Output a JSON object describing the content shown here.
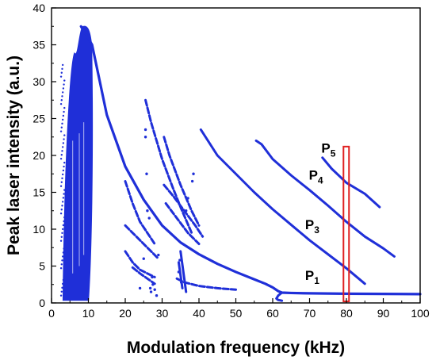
{
  "chart_data": {
    "type": "scatter",
    "xlabel": "Modulation frequency (kHz)",
    "ylabel": "Peak laser intensity (a.u.)",
    "xlim": [
      0,
      100
    ],
    "ylim": [
      0,
      40
    ],
    "xticks": [
      "0",
      "10",
      "20",
      "30",
      "40",
      "50",
      "60",
      "70",
      "80",
      "90",
      "100"
    ],
    "yticks": [
      "0",
      "5",
      "10",
      "15",
      "20",
      "25",
      "30",
      "35",
      "40"
    ],
    "grid": false,
    "marker_color": "#1f2fd8",
    "highlight_color": "#e02020",
    "chaotic_band": {
      "x_range": [
        3,
        11
      ],
      "y_range": [
        0.3,
        37.5
      ]
    },
    "series": [
      {
        "label": "P",
        "subscript": "1",
        "x": [
          8,
          11,
          15,
          20,
          25,
          30,
          35,
          40,
          45,
          50,
          55,
          58,
          60,
          61.5,
          62.5,
          65,
          70,
          80,
          90,
          100
        ],
        "y": [
          37.5,
          35,
          25.5,
          18.5,
          14,
          10.5,
          8.2,
          6.6,
          5.3,
          4.2,
          3.2,
          2.6,
          2.1,
          1.6,
          1.4,
          1.35,
          1.3,
          1.25,
          1.22,
          1.2
        ]
      },
      {
        "label": "",
        "x": [
          62.5,
          61.5,
          61,
          61.5,
          62.5
        ],
        "y": [
          1.4,
          1.0,
          0.6,
          0.4,
          0.3
        ]
      },
      {
        "label": "P",
        "subscript": "3",
        "x": [
          40.5,
          45,
          50,
          55,
          60,
          65,
          70,
          75,
          80,
          85
        ],
        "y": [
          23.5,
          20,
          17.5,
          15,
          12.7,
          10.6,
          8.5,
          6.6,
          4.7,
          2.6
        ]
      },
      {
        "label": "P",
        "subscript": "4",
        "x": [
          55.5,
          57,
          60,
          65,
          70,
          75,
          80,
          85,
          90,
          93
        ],
        "y": [
          22,
          21.5,
          19.5,
          17.3,
          15.3,
          13.2,
          11,
          9,
          7.4,
          6.3
        ]
      },
      {
        "label": "P",
        "subscript": "5",
        "x": [
          73.5,
          76,
          80,
          85,
          89
        ],
        "y": [
          19.7,
          18.2,
          16.3,
          14.8,
          13
        ]
      },
      {
        "label": "",
        "x": [
          25.5,
          27,
          30,
          33,
          35,
          38
        ],
        "y": [
          27.5,
          24.5,
          19.5,
          15.5,
          13,
          9.5
        ]
      },
      {
        "label": "",
        "x": [
          30.5,
          32,
          35,
          38,
          40
        ],
        "y": [
          22.5,
          20,
          16,
          12.5,
          10.5
        ]
      },
      {
        "label": "",
        "x": [
          30.5,
          33,
          36,
          39,
          41
        ],
        "y": [
          16,
          14.5,
          12.5,
          10.5,
          9
        ]
      },
      {
        "label": "",
        "x": [
          31,
          34,
          37,
          40
        ],
        "y": [
          13.5,
          11.5,
          9.5,
          8
        ]
      },
      {
        "label": "",
        "x": [
          20,
          22,
          24,
          26,
          28
        ],
        "y": [
          16.5,
          13.5,
          11,
          9.5,
          8
        ]
      },
      {
        "label": "",
        "x": [
          20,
          22,
          24,
          26,
          28,
          29
        ],
        "y": [
          10.5,
          9.5,
          8.5,
          7.5,
          6.5,
          6
        ]
      },
      {
        "label": "",
        "x": [
          20,
          22,
          24,
          26,
          28
        ],
        "y": [
          7,
          5.5,
          4.5,
          4,
          3.5
        ]
      },
      {
        "label": "",
        "x": [
          22,
          24,
          26,
          28
        ],
        "y": [
          4.8,
          4,
          3.3,
          2.6
        ]
      },
      {
        "label": "",
        "x": [
          34,
          36,
          40,
          45,
          50
        ],
        "y": [
          3.3,
          2.8,
          2.3,
          2,
          1.8
        ]
      },
      {
        "label": "",
        "x": [
          35,
          36.5
        ],
        "y": [
          7,
          1.5
        ]
      },
      {
        "label": "",
        "x": [
          34.5,
          35.5
        ],
        "y": [
          5.5,
          2
        ]
      }
    ],
    "scatter_points": {
      "x": [
        25.5,
        25.5,
        25.8,
        26,
        26.5,
        25,
        24,
        27,
        27.5,
        28,
        28.5,
        36.5,
        38.5,
        38.2,
        37,
        34.8,
        34.5,
        35.2,
        29,
        27.3,
        26.8
      ],
      "y": [
        23.5,
        22.5,
        17.5,
        12.5,
        11.5,
        6,
        2,
        1.5,
        2.5,
        1.8,
        1,
        12.5,
        17.5,
        16.5,
        14.2,
        5.8,
        4.2,
        2.8,
        6.5,
        3.5,
        2
      ]
    },
    "annotations": [
      {
        "text": "P",
        "subscript": "5",
        "x": 73.2,
        "y": 20.4
      },
      {
        "text": "P",
        "subscript": "4",
        "x": 69.8,
        "y": 16.7
      },
      {
        "text": "P",
        "subscript": "3",
        "x": 68.8,
        "y": 10
      },
      {
        "text": "P",
        "subscript": "1",
        "x": 68.8,
        "y": 3.1
      }
    ],
    "highlight_box": {
      "x_range": [
        79.2,
        80.7
      ],
      "y_range": [
        0.2,
        21.2
      ]
    }
  }
}
